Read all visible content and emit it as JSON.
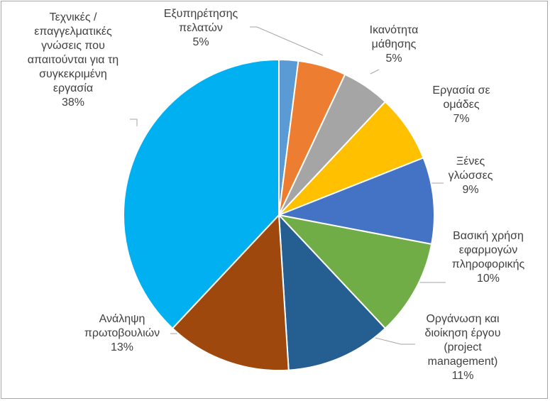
{
  "chart_data": {
    "type": "pie",
    "categories": [
      null,
      "Εξυπηρέτησης πελατών",
      "Ικανότητα μάθησης",
      "Εργασία σε ομάδες",
      "Ξένες γλώσσες",
      "Βασική χρήση εφαρμογών πληροφορικής",
      "Οργάνωση και διοίκηση έργου (project management)",
      "Ανάληψη πρωτοβουλιών",
      "Τεχνικές / επαγγελματικές γνώσεις που απαιτούνται για τη συγκεκριμένη εργασία"
    ],
    "values": [
      2,
      5,
      5,
      7,
      9,
      10,
      11,
      13,
      38
    ],
    "value_labels": [
      null,
      "5%",
      "5%",
      "7%",
      "9%",
      "10%",
      "11%",
      "13%",
      "38%"
    ],
    "colors": [
      "#5b9bd5",
      "#ed7d31",
      "#a5a5a5",
      "#ffc000",
      "#4472c4",
      "#70ad47",
      "#255e91",
      "#9e480e",
      "#00b0f0"
    ]
  }
}
